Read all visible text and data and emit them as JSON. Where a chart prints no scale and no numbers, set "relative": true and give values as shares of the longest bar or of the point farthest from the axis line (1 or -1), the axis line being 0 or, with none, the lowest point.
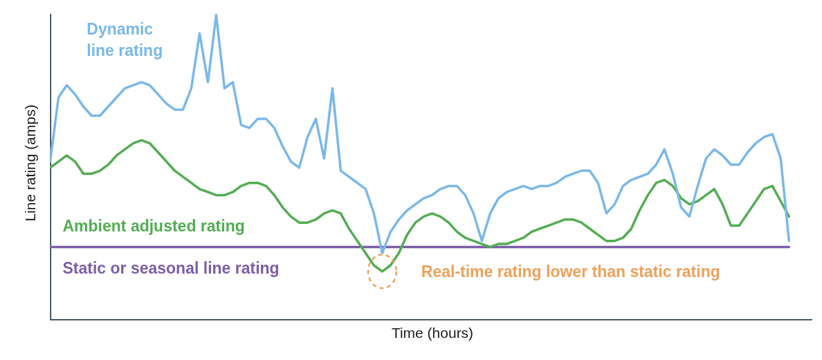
{
  "chart_data": {
    "type": "line",
    "relative": true,
    "xlabel": "Time (hours)",
    "ylabel": "Line rating (amps)",
    "marker": "none",
    "line_style": "solid",
    "categories": [
      null,
      null,
      null,
      null,
      null,
      null,
      null,
      null,
      null,
      null,
      null,
      null,
      null,
      null,
      null,
      null,
      null,
      null,
      null,
      null,
      null,
      null,
      null,
      null,
      null,
      null,
      null,
      null,
      null,
      null,
      null,
      null,
      null,
      null,
      null,
      null,
      null,
      null,
      null,
      null,
      null,
      null,
      null,
      null,
      null,
      null,
      null,
      null,
      null,
      null,
      null,
      null,
      null,
      null,
      null,
      null,
      null,
      null,
      null,
      null,
      null,
      null,
      null,
      null,
      null,
      null,
      null,
      null,
      null,
      null,
      null,
      null,
      null,
      null,
      null,
      null,
      null,
      null,
      null,
      null,
      null,
      null,
      null,
      null,
      null,
      null,
      null,
      null,
      null,
      null
    ],
    "series": [
      {
        "name": "Dynamic\nline rating",
        "color": "#7ab8ea",
        "values": [
          0.52,
          0.73,
          0.77,
          0.74,
          0.7,
          0.67,
          0.67,
          0.7,
          0.73,
          0.76,
          0.77,
          0.78,
          0.77,
          0.74,
          0.71,
          0.69,
          0.69,
          0.76,
          0.94,
          0.78,
          1.0,
          0.76,
          0.78,
          0.64,
          0.63,
          0.66,
          0.66,
          0.63,
          0.57,
          0.52,
          0.5,
          0.6,
          0.66,
          0.53,
          0.76,
          0.49,
          0.47,
          0.45,
          0.43,
          0.35,
          0.22,
          0.29,
          0.33,
          0.36,
          0.38,
          0.4,
          0.41,
          0.43,
          0.44,
          0.44,
          0.41,
          0.35,
          0.26,
          0.35,
          0.4,
          0.42,
          0.43,
          0.44,
          0.43,
          0.44,
          0.44,
          0.45,
          0.47,
          0.48,
          0.49,
          0.49,
          0.45,
          0.35,
          0.38,
          0.44,
          0.46,
          0.47,
          0.48,
          0.51,
          0.56,
          0.48,
          0.37,
          0.34,
          0.44,
          0.53,
          0.56,
          0.54,
          0.51,
          0.51,
          0.55,
          0.58,
          0.6,
          0.61,
          0.53,
          0.26
        ]
      },
      {
        "name": "Ambient adjusted rating",
        "color": "#52ad52",
        "values": [
          0.5,
          0.52,
          0.54,
          0.52,
          0.48,
          0.48,
          0.49,
          0.51,
          0.54,
          0.56,
          0.58,
          0.59,
          0.58,
          0.55,
          0.52,
          0.49,
          0.47,
          0.45,
          0.43,
          0.42,
          0.41,
          0.41,
          0.42,
          0.44,
          0.45,
          0.45,
          0.44,
          0.41,
          0.37,
          0.34,
          0.32,
          0.32,
          0.33,
          0.35,
          0.36,
          0.35,
          0.3,
          0.26,
          0.22,
          0.18,
          0.16,
          0.18,
          0.22,
          0.28,
          0.32,
          0.34,
          0.35,
          0.34,
          0.32,
          0.29,
          0.27,
          0.26,
          0.25,
          0.24,
          0.25,
          0.25,
          0.26,
          0.27,
          0.29,
          0.3,
          0.31,
          0.32,
          0.33,
          0.33,
          0.32,
          0.3,
          0.28,
          0.26,
          0.26,
          0.27,
          0.3,
          0.36,
          0.41,
          0.45,
          0.46,
          0.44,
          0.4,
          0.38,
          0.39,
          0.41,
          0.43,
          0.38,
          0.31,
          0.31,
          0.35,
          0.39,
          0.43,
          0.44,
          0.39,
          0.34
        ]
      },
      {
        "name": "Static or seasonal line rating",
        "color": "#7b5ea7",
        "values": [
          0.24,
          0.24,
          0.24,
          0.24,
          0.24,
          0.24,
          0.24,
          0.24,
          0.24,
          0.24,
          0.24,
          0.24,
          0.24,
          0.24,
          0.24,
          0.24,
          0.24,
          0.24,
          0.24,
          0.24,
          0.24,
          0.24,
          0.24,
          0.24,
          0.24,
          0.24,
          0.24,
          0.24,
          0.24,
          0.24,
          0.24,
          0.24,
          0.24,
          0.24,
          0.24,
          0.24,
          0.24,
          0.24,
          0.24,
          0.24,
          0.24,
          0.24,
          0.24,
          0.24,
          0.24,
          0.24,
          0.24,
          0.24,
          0.24,
          0.24,
          0.24,
          0.24,
          0.24,
          0.24,
          0.24,
          0.24,
          0.24,
          0.24,
          0.24,
          0.24,
          0.24,
          0.24,
          0.24,
          0.24,
          0.24,
          0.24,
          0.24,
          0.24,
          0.24,
          0.24,
          0.24,
          0.24,
          0.24,
          0.24,
          0.24,
          0.24,
          0.24,
          0.24,
          0.24,
          0.24,
          0.24,
          0.24,
          0.24,
          0.24,
          0.24,
          0.24,
          0.24,
          0.24,
          0.24,
          0.24
        ]
      }
    ],
    "annotations": [
      "Real-time rating lower than static rating"
    ]
  }
}
